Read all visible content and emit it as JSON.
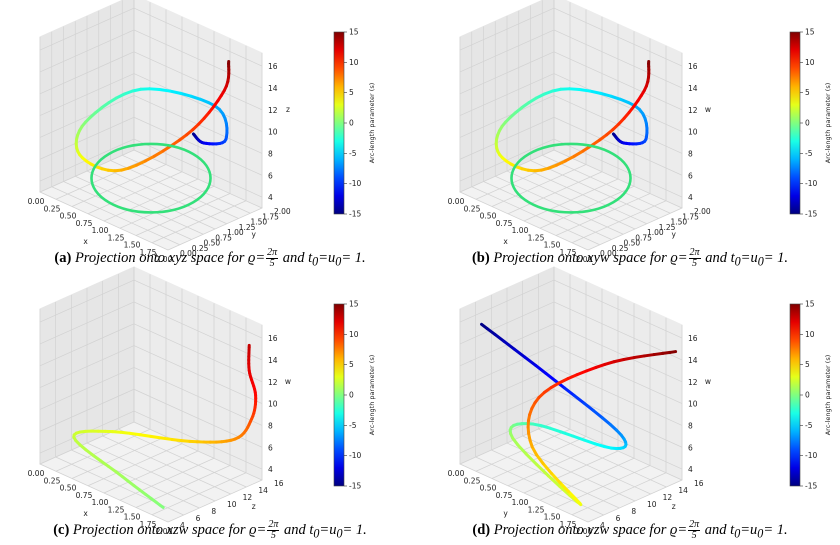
{
  "chart_data": [
    {
      "type": "line3d",
      "panel_label": "(a)",
      "caption_text": "Projection onto xyz space for",
      "xlabel": "x",
      "ylabel": "y",
      "zlabel": "z",
      "x_ticks": [
        "0.00",
        "0.25",
        "0.50",
        "0.75",
        "1.00",
        "1.25",
        "1.50",
        "1.75",
        "2.00"
      ],
      "y_ticks": [
        "0.00",
        "0.25",
        "0.50",
        "0.75",
        "1.00",
        "1.25",
        "1.50",
        "1.75",
        "2.00"
      ],
      "z_ticks": [
        "4",
        "6",
        "8",
        "10",
        "12",
        "14",
        "16"
      ],
      "colorbar_label": "Arc-length parameter (s)",
      "colorbar_ticks": [
        "15",
        "10",
        "5",
        "0",
        "-5",
        "-10",
        "-15"
      ],
      "colormap": "jet",
      "curve_colored_by": "s",
      "series": [
        {
          "name": "curve",
          "points": [
            {
              "x": 1.7,
              "y": 0.95,
              "z": 11.0,
              "s": -15
            },
            {
              "x": 1.9,
              "y": 0.9,
              "z": 10.8,
              "s": -12
            },
            {
              "x": 1.95,
              "y": 1.3,
              "z": 10.5,
              "s": -9
            },
            {
              "x": 1.3,
              "y": 1.95,
              "z": 10.6,
              "s": -6
            },
            {
              "x": 0.4,
              "y": 1.6,
              "z": 10.4,
              "s": -3
            },
            {
              "x": 0.05,
              "y": 0.9,
              "z": 7.8,
              "s": 0
            },
            {
              "x": 0.4,
              "y": 0.3,
              "z": 6.9,
              "s": 3
            },
            {
              "x": 1.2,
              "y": 0.1,
              "z": 8.0,
              "s": 6
            },
            {
              "x": 1.85,
              "y": 0.6,
              "z": 12.0,
              "s": 9
            },
            {
              "x": 1.85,
              "y": 1.4,
              "z": 14.5,
              "s": 12
            },
            {
              "x": 1.7,
              "y": 1.7,
              "z": 16.2,
              "s": 15
            }
          ]
        },
        {
          "name": "ring",
          "color": "#33e07a",
          "points": [
            {
              "x": 0.1,
              "y": 1.0,
              "z": 5.0
            },
            {
              "x": 1.0,
              "y": 0.1,
              "z": 5.0
            },
            {
              "x": 1.9,
              "y": 1.0,
              "z": 5.0
            },
            {
              "x": 1.0,
              "y": 1.9,
              "z": 5.0
            }
          ]
        }
      ]
    },
    {
      "type": "line3d",
      "panel_label": "(b)",
      "caption_text": "Projection onto xyw space for",
      "xlabel": "x",
      "ylabel": "y",
      "zlabel": "w",
      "x_ticks": [
        "0.00",
        "0.25",
        "0.50",
        "0.75",
        "1.00",
        "1.25",
        "1.50",
        "1.75",
        "2.00"
      ],
      "y_ticks": [
        "0.00",
        "0.25",
        "0.50",
        "0.75",
        "1.00",
        "1.25",
        "1.50",
        "1.75",
        "2.00"
      ],
      "z_ticks": [
        "4",
        "6",
        "8",
        "10",
        "12",
        "14",
        "16"
      ],
      "colorbar_label": "Arc-length parameter (s)",
      "colorbar_ticks": [
        "15",
        "10",
        "5",
        "0",
        "-5",
        "-10",
        "-15"
      ],
      "colormap": "jet",
      "curve_colored_by": "s",
      "series": [
        {
          "name": "curve",
          "points": [
            {
              "x": 1.7,
              "y": 0.95,
              "z": 11.0,
              "s": -15
            },
            {
              "x": 1.9,
              "y": 0.9,
              "z": 10.8,
              "s": -12
            },
            {
              "x": 1.95,
              "y": 1.3,
              "z": 10.5,
              "s": -9
            },
            {
              "x": 1.3,
              "y": 1.95,
              "z": 10.6,
              "s": -6
            },
            {
              "x": 0.4,
              "y": 1.6,
              "z": 10.4,
              "s": -3
            },
            {
              "x": 0.05,
              "y": 0.9,
              "z": 7.8,
              "s": 0
            },
            {
              "x": 0.4,
              "y": 0.3,
              "z": 6.9,
              "s": 3
            },
            {
              "x": 1.2,
              "y": 0.1,
              "z": 8.0,
              "s": 6
            },
            {
              "x": 1.85,
              "y": 0.6,
              "z": 12.0,
              "s": 9
            },
            {
              "x": 1.85,
              "y": 1.4,
              "z": 14.5,
              "s": 12
            },
            {
              "x": 1.7,
              "y": 1.7,
              "z": 16.2,
              "s": 15
            }
          ]
        },
        {
          "name": "ring",
          "color": "#33e07a",
          "points": [
            {
              "x": 0.1,
              "y": 1.0,
              "z": 5.0
            },
            {
              "x": 1.0,
              "y": 0.1,
              "z": 5.0
            },
            {
              "x": 1.9,
              "y": 1.0,
              "z": 5.0
            },
            {
              "x": 1.0,
              "y": 1.9,
              "z": 5.0
            }
          ]
        }
      ]
    },
    {
      "type": "line3d",
      "panel_label": "(c)",
      "caption_text": "Projection onto xzw space for",
      "xlabel": "x",
      "ylabel": "z",
      "zlabel": "w",
      "x_ticks": [
        "0.00",
        "0.25",
        "0.50",
        "0.75",
        "1.00",
        "1.25",
        "1.50",
        "1.75",
        "2.00"
      ],
      "y_ticks": [
        "4",
        "6",
        "8",
        "10",
        "12",
        "14",
        "16"
      ],
      "z_ticks": [
        "4",
        "6",
        "8",
        "10",
        "12",
        "14",
        "16"
      ],
      "colorbar_label": "Arc-length parameter (s)",
      "colorbar_ticks": [
        "15",
        "10",
        "5",
        "0",
        "-5",
        "-10",
        "-15"
      ],
      "colormap": "jet",
      "curve_colored_by": "s",
      "series": [
        {
          "name": "curve",
          "points": [
            {
              "x": 1.9,
              "y": 4.2,
              "z": 4.0,
              "s": 0
            },
            {
              "x": 1.1,
              "y": 5.5,
              "z": 4.3,
              "s": 1
            },
            {
              "x": 0.1,
              "y": 7.5,
              "z": 4.6,
              "s": 2
            },
            {
              "x": 0.4,
              "y": 10.0,
              "z": 5.1,
              "s": 3
            },
            {
              "x": 1.3,
              "y": 12.5,
              "z": 5.8,
              "s": 5
            },
            {
              "x": 1.8,
              "y": 14.2,
              "z": 6.8,
              "s": 7
            },
            {
              "x": 1.9,
              "y": 15.5,
              "z": 8.5,
              "s": 9
            },
            {
              "x": 1.9,
              "y": 16.0,
              "z": 10.5,
              "s": 11
            },
            {
              "x": 1.8,
              "y": 16.0,
              "z": 12.5,
              "s": 12
            },
            {
              "x": 1.8,
              "y": 16.0,
              "z": 14.8,
              "s": 13
            }
          ]
        }
      ]
    },
    {
      "type": "line3d",
      "panel_label": "(d)",
      "caption_text": "Projection onto yzw space for",
      "xlabel": "y",
      "ylabel": "z",
      "zlabel": "w",
      "x_ticks": [
        "0.00",
        "0.25",
        "0.50",
        "0.75",
        "1.00",
        "1.25",
        "1.50",
        "1.75",
        "2.00"
      ],
      "y_ticks": [
        "4",
        "6",
        "8",
        "10",
        "12",
        "14",
        "16"
      ],
      "z_ticks": [
        "4",
        "6",
        "8",
        "10",
        "12",
        "14",
        "16"
      ],
      "colorbar_label": "Arc-length parameter (s)",
      "colorbar_ticks": [
        "15",
        "10",
        "5",
        "0",
        "-5",
        "-10",
        "-15"
      ],
      "colormap": "jet",
      "curve_colored_by": "s",
      "series": [
        {
          "name": "curve",
          "points": [
            {
              "x": 0.3,
              "y": 4.3,
              "z": 16.5,
              "s": -15
            },
            {
              "x": 1.0,
              "y": 8.0,
              "z": 12.0,
              "s": -11
            },
            {
              "x": 1.6,
              "y": 11.5,
              "z": 7.5,
              "s": -7
            },
            {
              "x": 1.2,
              "y": 13.5,
              "z": 4.6,
              "s": -4
            },
            {
              "x": 0.1,
              "y": 12.5,
              "z": 4.2,
              "s": -2
            },
            {
              "x": 0.15,
              "y": 9.5,
              "z": 4.0,
              "s": 1
            },
            {
              "x": 1.85,
              "y": 4.3,
              "z": 4.1,
              "s": 3
            },
            {
              "x": 0.7,
              "y": 7.5,
              "z": 5.3,
              "s": 6
            },
            {
              "x": 0.5,
              "y": 10.0,
              "z": 8.5,
              "s": 9
            },
            {
              "x": 1.1,
              "y": 13.5,
              "z": 12.0,
              "s": 12
            },
            {
              "x": 1.9,
              "y": 16.0,
              "z": 14.5,
              "s": 15
            }
          ]
        }
      ]
    }
  ],
  "captions": {
    "equals_text": "=",
    "frac_num": "2π",
    "frac_den": "5",
    "and_text": "and",
    "rho": "ϱ",
    "t0": "t",
    "sub0": "0",
    "u0": "u",
    "eq_one": "= 1."
  }
}
